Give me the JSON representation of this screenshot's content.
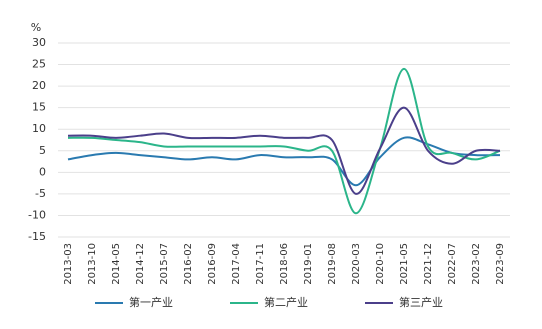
{
  "chart_data": {
    "type": "line",
    "unit": "%",
    "categories": [
      "2013-03",
      "2013-10",
      "2014-05",
      "2014-12",
      "2015-07",
      "2016-02",
      "2016-09",
      "2017-04",
      "2017-11",
      "2018-06",
      "2019-01",
      "2019-08",
      "2020-03",
      "2020-10",
      "2021-05",
      "2021-12",
      "2022-07",
      "2023-02",
      "2023-09"
    ],
    "series": [
      {
        "name": "第一产业",
        "color": "#2a7ab0",
        "values": [
          3,
          4,
          4.5,
          4,
          3.5,
          3,
          3.5,
          3,
          4,
          3.5,
          3.5,
          3,
          -3,
          3.5,
          8,
          6.5,
          4.5,
          4,
          4
        ]
      },
      {
        "name": "第二产业",
        "color": "#2bb58a",
        "values": [
          8,
          8,
          7.5,
          7,
          6,
          6,
          6,
          6,
          6,
          6,
          5,
          5,
          -9.5,
          5.5,
          24,
          6,
          4.5,
          3,
          5
        ]
      },
      {
        "name": "第三产业",
        "color": "#4b3f8a",
        "values": [
          8.5,
          8.5,
          8,
          8.5,
          9,
          8,
          8,
          8,
          8.5,
          8,
          8,
          7.5,
          -5,
          5.5,
          15,
          5,
          2,
          5,
          5
        ]
      }
    ],
    "ylim": [
      -15,
      30
    ],
    "yticks": [
      -15,
      -10,
      -5,
      0,
      5,
      10,
      15,
      20,
      25,
      30
    ],
    "grid": true,
    "legend": "bottom"
  }
}
